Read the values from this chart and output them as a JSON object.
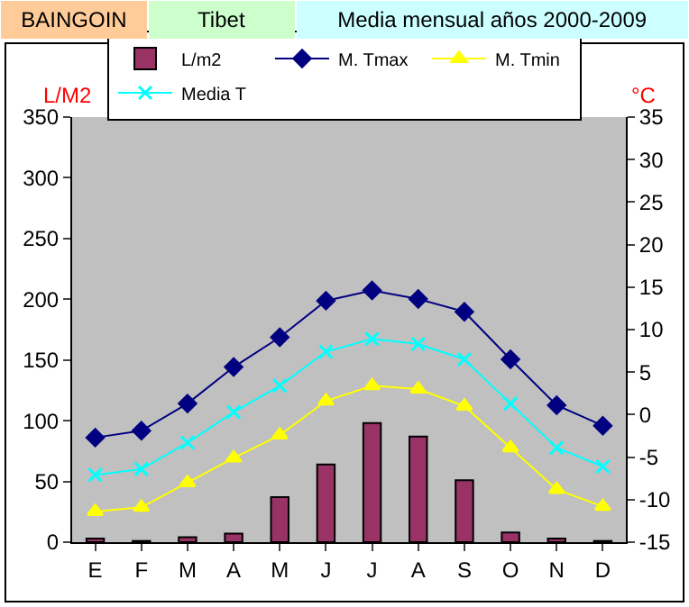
{
  "chart_data": {
    "type": "bar",
    "title": "BAINGOIN",
    "subtitle": "Tibet",
    "annotations": [
      "Media mensual años 2000-2009"
    ],
    "ylabel": "L/M2",
    "y2label": "°C",
    "categories": [
      "E",
      "F",
      "M",
      "A",
      "M",
      "J",
      "J",
      "A",
      "S",
      "O",
      "N",
      "D"
    ],
    "series": [
      {
        "name": "L/m2",
        "color": "#993366",
        "values": [
          3,
          1,
          4,
          7,
          37,
          64,
          98,
          87,
          51,
          8,
          3,
          1
        ]
      },
      {
        "name": "M. Tmax",
        "type": "line",
        "axis": "y2",
        "marker": "diamond",
        "color": "#000080",
        "values": [
          -2.7,
          -1.9,
          1.3,
          5.6,
          9.1,
          13.4,
          14.6,
          13.6,
          12.1,
          6.5,
          1.1,
          -1.3
        ]
      },
      {
        "name": "M. Tmin",
        "type": "line",
        "axis": "y2",
        "marker": "triangle",
        "color": "#ffff00",
        "values": [
          -11.4,
          -10.9,
          -8.0,
          -5.1,
          -2.4,
          1.6,
          3.4,
          3.0,
          1.0,
          -3.9,
          -8.8,
          -10.8
        ]
      },
      {
        "name": "Media T",
        "type": "line",
        "axis": "y2",
        "marker": "cross",
        "color": "#00ffff",
        "values": [
          -7.1,
          -6.4,
          -3.3,
          0.3,
          3.4,
          7.4,
          8.9,
          8.3,
          6.5,
          1.3,
          -3.9,
          -6.1
        ]
      }
    ],
    "ylim": [
      0,
      350
    ],
    "yticks": [
      0,
      50,
      100,
      150,
      200,
      250,
      300,
      350
    ],
    "y2lim": [
      -15,
      35
    ],
    "y2ticks": [
      -15,
      -10,
      -5,
      0,
      5,
      10,
      15,
      20,
      25,
      30,
      35
    ],
    "grid": false,
    "legend": "top"
  }
}
